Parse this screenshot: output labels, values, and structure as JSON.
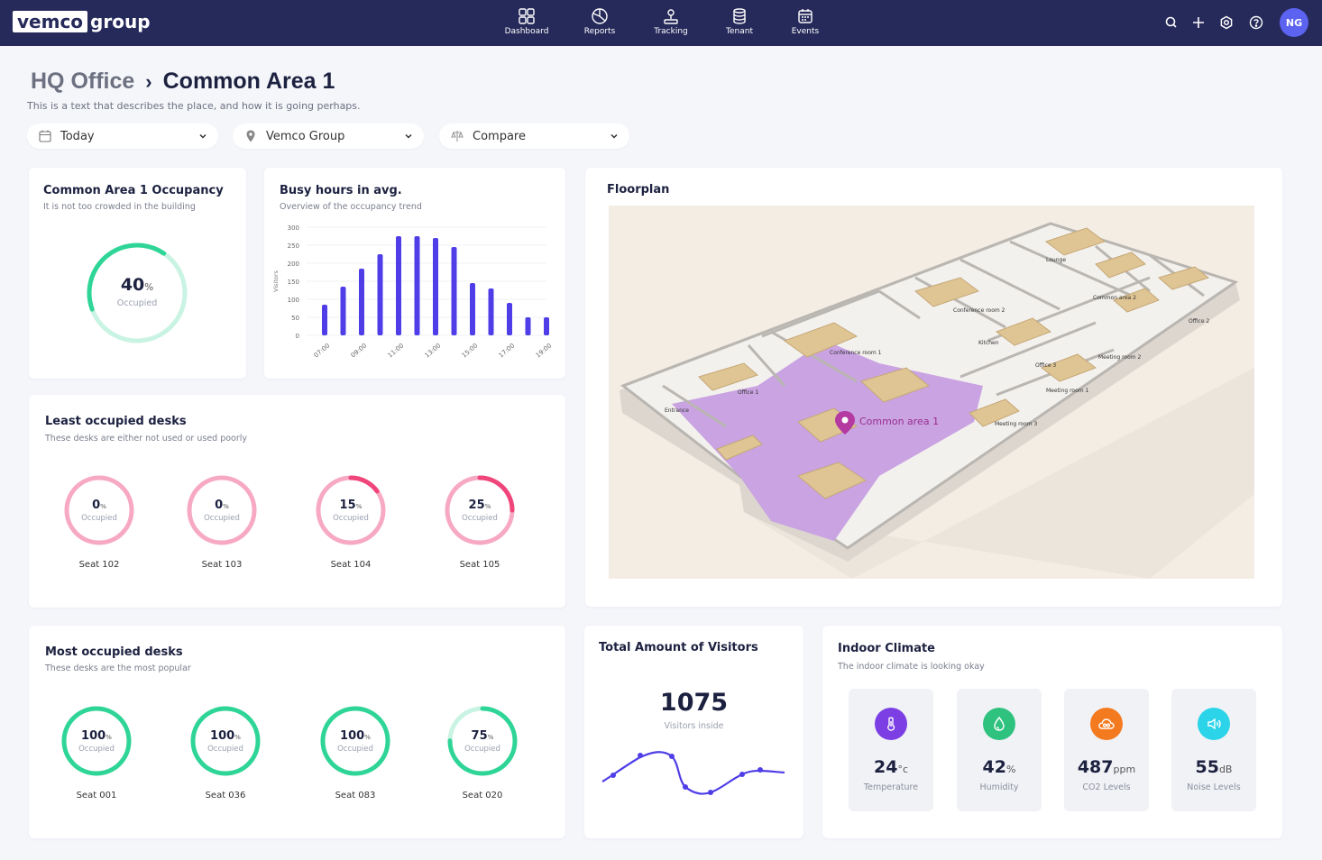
{
  "brand": {
    "logo_box": "vemco",
    "logo_rest": "group"
  },
  "nav": [
    {
      "label": "Dashboard",
      "icon": "dashboard-icon"
    },
    {
      "label": "Reports",
      "icon": "reports-icon"
    },
    {
      "label": "Tracking",
      "icon": "tracking-icon"
    },
    {
      "label": "Tenant",
      "icon": "tenant-icon"
    },
    {
      "label": "Events",
      "icon": "events-icon"
    }
  ],
  "user": {
    "initials": "NG"
  },
  "header": {
    "parent": "HQ Office",
    "current": "Common Area 1",
    "description": "This is a text that describes the place, and how it is going perhaps."
  },
  "filters": {
    "date": "Today",
    "location": "Vemco Group",
    "compare": "Compare"
  },
  "occupancy": {
    "title": "Common Area 1 Occupancy",
    "subtitle": "It is not too crowded in the building",
    "value": "40",
    "unit": "%",
    "label": "Occupied",
    "percent": 40
  },
  "busy": {
    "title": "Busy hours in avg.",
    "subtitle": "Overview of the occupancy trend"
  },
  "chart_data": {
    "type": "bar",
    "ylabel": "Visitors",
    "ylim": [
      0,
      300
    ],
    "yticks": [
      0,
      50,
      100,
      150,
      200,
      250,
      300
    ],
    "xticks": [
      "07:00",
      "09:00",
      "11:00",
      "13:00",
      "15:00",
      "17:00",
      "19:00"
    ],
    "values": [
      85,
      135,
      185,
      225,
      275,
      275,
      270,
      245,
      145,
      130,
      90,
      50,
      50
    ],
    "color": "#4f3ee8"
  },
  "floorplan": {
    "title": "Floorplan",
    "pin_label": "Common area 1",
    "rooms": [
      "Lounge",
      "Common area 2",
      "Conference room 2",
      "Office 2",
      "Conference room 1",
      "Kitchen",
      "Office 3",
      "Meeting room 2",
      "Office 1",
      "Meeting room 1",
      "Entrance",
      "Meeting room 3"
    ]
  },
  "least": {
    "title": "Least occupied desks",
    "subtitle": "These desks are either not used or used poorly",
    "seats": [
      {
        "seat": "Seat 102",
        "value": "0",
        "percent": 0
      },
      {
        "seat": "Seat 103",
        "value": "0",
        "percent": 0
      },
      {
        "seat": "Seat 104",
        "value": "15",
        "percent": 15
      },
      {
        "seat": "Seat 105",
        "value": "25",
        "percent": 25
      }
    ]
  },
  "most": {
    "title": "Most occupied desks",
    "subtitle": "These desks are the most popular",
    "seats": [
      {
        "seat": "Seat 001",
        "value": "100",
        "percent": 100
      },
      {
        "seat": "Seat 036",
        "value": "100",
        "percent": 100
      },
      {
        "seat": "Seat 083",
        "value": "100",
        "percent": 100
      },
      {
        "seat": "Seat 020",
        "value": "75",
        "percent": 75
      }
    ]
  },
  "ring_unit": "%",
  "ring_label": "Occupied",
  "visitors": {
    "title": "Total Amount of Visitors",
    "value": "1075",
    "subtitle": "Visitors inside"
  },
  "climate": {
    "title": "Indoor Climate",
    "subtitle": "The indoor climate is looking okay",
    "items": [
      {
        "value": "24",
        "unit": "°c",
        "label": "Temperature",
        "color": "#7b3fe4",
        "icon": "thermometer-icon"
      },
      {
        "value": "42",
        "unit": "%",
        "label": "Humidity",
        "color": "#2ec27e",
        "icon": "humidity-icon"
      },
      {
        "value": "487",
        "unit": "ppm",
        "label": "CO2 Levels",
        "color": "#f47a1f",
        "icon": "cloud-icon"
      },
      {
        "value": "55",
        "unit": "dB",
        "label": "Noise Levels",
        "color": "#2bd4e8",
        "icon": "speaker-icon"
      }
    ]
  },
  "colors": {
    "navy": "#262a5a",
    "green": "#2fd597",
    "pink": "#f7a9c3",
    "pink_accent": "#f0457a",
    "purple": "#4f3ee8"
  }
}
